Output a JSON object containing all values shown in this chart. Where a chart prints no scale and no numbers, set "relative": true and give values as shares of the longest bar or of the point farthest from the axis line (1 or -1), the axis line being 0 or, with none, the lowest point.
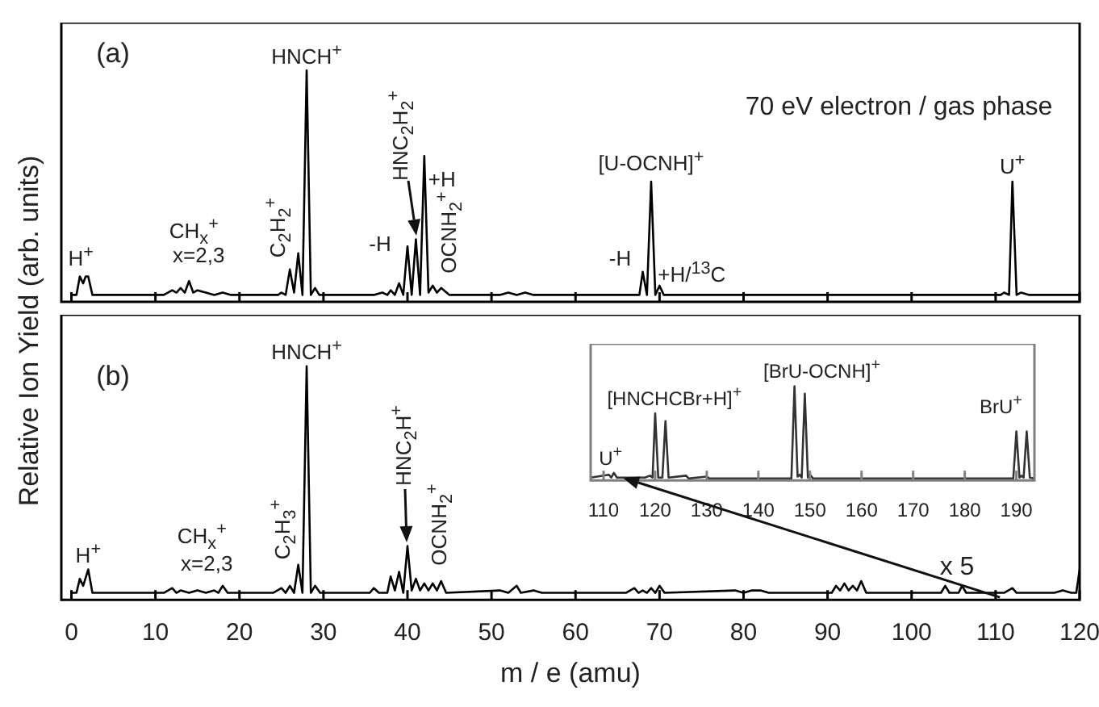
{
  "chart_data": [
    {
      "type": "line",
      "title": "(a)",
      "ylabel": "Relative Ion Yield (arb. units)",
      "relative": true,
      "color": "#000000",
      "xlim": [
        -1.2,
        120
      ],
      "xticks": [
        0,
        10,
        20,
        30,
        40,
        50,
        60,
        70,
        80,
        90,
        100,
        110,
        120
      ],
      "tick_labels": false,
      "x": [
        0,
        0.6,
        1,
        1.4,
        1.7,
        2,
        2.5,
        11,
        12,
        12.5,
        13,
        13.5,
        14,
        14.5,
        15,
        16,
        17,
        18,
        19,
        24,
        24.6,
        25,
        25.5,
        26,
        26.5,
        27,
        27.5,
        28,
        28.5,
        29,
        29.5,
        36,
        37,
        37.6,
        38,
        38.5,
        39,
        39.5,
        40,
        40.5,
        41,
        41.5,
        42,
        42.5,
        43,
        43.5,
        44,
        45,
        51,
        52,
        53,
        54,
        55,
        66,
        67.6,
        68,
        68.5,
        69,
        69.5,
        70,
        70.5,
        72,
        110.6,
        111,
        111.6,
        112,
        112.5,
        113,
        114,
        120
      ],
      "values": [
        0.03,
        0.03,
        0.11,
        0.08,
        0.11,
        0.11,
        0.03,
        0.03,
        0.05,
        0.04,
        0.06,
        0.04,
        0.09,
        0.04,
        0.05,
        0.04,
        0.03,
        0.04,
        0.03,
        0.03,
        0.03,
        0.04,
        0.03,
        0.14,
        0.04,
        0.21,
        0.03,
        1,
        0.03,
        0.06,
        0.03,
        0.03,
        0.04,
        0.03,
        0.05,
        0.03,
        0.08,
        0.03,
        0.24,
        0.03,
        0.27,
        0.03,
        0.63,
        0.04,
        0.07,
        0.04,
        0.06,
        0.03,
        0.03,
        0.04,
        0.03,
        0.04,
        0.03,
        0.03,
        0.03,
        0.13,
        0.03,
        0.52,
        0.03,
        0.07,
        0.03,
        0.03,
        0.03,
        0.04,
        0.03,
        0.52,
        0.03,
        0.04,
        0.03,
        0.03
      ],
      "annotations": [
        {
          "text": "H$^{+}$",
          "x": 1.5,
          "y": 0.11
        },
        {
          "text": "CH$_{x}$$^{+}$",
          "x": 14,
          "y": 0.09
        },
        {
          "text": "x=2,3",
          "x": 14,
          "y": 0.09
        },
        {
          "text": "C$_{2}$H$_{2}$$^{+}$",
          "x": 26,
          "y": 0.14
        },
        {
          "text": "HNCH$^{+}$",
          "x": 28,
          "y": 1
        },
        {
          "text": "HNC$_{2}$H$_{2}$$^{+}$",
          "x": 41,
          "y": 0.27
        },
        {
          "text": "-H",
          "x": 40,
          "y": 0.24
        },
        {
          "text": "+H",
          "x": 42,
          "y": 0.63
        },
        {
          "text": "OCNH$_{2}$$^{+}$",
          "x": 44,
          "y": 0.06
        },
        {
          "text": "[U-OCNH]$^{+}$",
          "x": 69,
          "y": 0.52
        },
        {
          "text": "-H",
          "x": 68,
          "y": 0.13
        },
        {
          "text": "+H/$^{13}$C",
          "x": 70,
          "y": 0.07
        },
        {
          "text": "U$^{+}$",
          "x": 112,
          "y": 0.52
        },
        "70 eV electron / gas phase"
      ]
    },
    {
      "type": "line",
      "title": "(b)",
      "xlabel": "m / e (amu)",
      "relative": true,
      "color": "#000000",
      "xlim": [
        -1.2,
        120
      ],
      "xticks": [
        0,
        10,
        20,
        30,
        40,
        50,
        60,
        70,
        80,
        90,
        100,
        110,
        120
      ],
      "tick_labels": "x",
      "x": [
        0,
        0.6,
        1,
        1.4,
        2,
        2.5,
        11,
        12,
        12.5,
        13,
        14,
        15,
        16,
        17,
        17.5,
        18,
        18.6,
        24,
        25,
        25.5,
        26,
        26.5,
        27,
        27.5,
        28,
        28.5,
        29,
        29.6,
        35.5,
        36,
        36.6,
        37.6,
        38,
        38.5,
        39,
        39.5,
        40,
        40.5,
        41,
        41.5,
        42,
        42.5,
        43,
        43.5,
        44,
        44.6,
        51,
        52,
        53,
        53.5,
        55,
        56,
        66,
        67,
        67.5,
        68,
        68.5,
        69,
        69.5,
        70,
        70.6,
        79,
        80,
        81,
        82,
        83,
        90.5,
        91,
        91.5,
        92,
        92.5,
        93,
        93.5,
        94,
        94.6,
        103.5,
        104,
        104.5,
        105.6,
        106,
        106.5,
        111,
        112,
        112.5,
        117,
        118,
        119,
        119.6,
        120
      ],
      "values": [
        0.03,
        0.03,
        0.09,
        0.06,
        0.13,
        0.03,
        0.03,
        0.05,
        0.03,
        0.04,
        0.03,
        0.04,
        0.03,
        0.04,
        0.03,
        0.06,
        0.03,
        0.03,
        0.05,
        0.03,
        0.06,
        0.03,
        0.15,
        0.03,
        1,
        0.03,
        0.06,
        0.03,
        0.03,
        0.05,
        0.03,
        0.03,
        0.1,
        0.04,
        0.12,
        0.03,
        0.23,
        0.04,
        0.09,
        0.04,
        0.07,
        0.04,
        0.07,
        0.04,
        0.08,
        0.03,
        0.04,
        0.03,
        0.06,
        0.03,
        0.04,
        0.03,
        0.03,
        0.05,
        0.03,
        0.04,
        0.03,
        0.05,
        0.03,
        0.06,
        0.03,
        0.04,
        0.03,
        0.04,
        0.04,
        0.03,
        0.03,
        0.06,
        0.04,
        0.07,
        0.04,
        0.06,
        0.04,
        0.08,
        0.03,
        0.03,
        0.06,
        0.03,
        0.03,
        0.06,
        0.03,
        0.03,
        0.05,
        0.03,
        0.03,
        0.04,
        0.03,
        0.03,
        0.13
      ],
      "annotations": [
        {
          "text": "H$^{+}$",
          "x": 2,
          "y": 0.13
        },
        {
          "text": "CH$_{x}$$^{+}$",
          "x": 14,
          "y": 0.05
        },
        {
          "text": "x=2,3",
          "x": 14,
          "y": 0.05
        },
        {
          "text": "C$_{2}$H$_{3}$$^{+}$",
          "x": 27,
          "y": 0.15
        },
        {
          "text": "HNCH$^{+}$",
          "x": 28,
          "y": 1
        },
        {
          "text": "HNC$_{2}$H$^{+}$",
          "x": 40,
          "y": 0.23
        },
        {
          "text": "OCNH$_{2}$$^{+}$",
          "x": 44,
          "y": 0.08
        },
        "x 5"
      ]
    },
    {
      "type": "line",
      "relative": true,
      "color": "#333333",
      "xlim": [
        107.5,
        193.5
      ],
      "xticks": [
        110,
        120,
        130,
        140,
        150,
        160,
        170,
        180,
        190
      ],
      "tick_labels": "x",
      "x": [
        107.5,
        111,
        111.5,
        112,
        112.6,
        118,
        119,
        119.5,
        120,
        120.6,
        121.4,
        122,
        122.6,
        126,
        126.5,
        130,
        130.5,
        146.4,
        147,
        147.6,
        148,
        148.4,
        149,
        149.6,
        150,
        150.6,
        189.4,
        190,
        190.6,
        191,
        191.4,
        192,
        192.6,
        193.5
      ],
      "values": [
        0.03,
        0.06,
        0.03,
        0.08,
        0.03,
        0.03,
        0.05,
        0.03,
        0.71,
        0.03,
        0.03,
        0.63,
        0.03,
        0.05,
        0.02,
        0.04,
        0.02,
        0.02,
        1,
        0.04,
        0.06,
        0.03,
        0.92,
        0.03,
        0.06,
        0.02,
        0.02,
        0.52,
        0.03,
        0.05,
        0.03,
        0.52,
        0.03,
        0.02
      ],
      "annotations": [
        {
          "text": "U$^{+}$",
          "x": 112,
          "y": 0.08
        },
        {
          "text": "[HNCHCBr+H]$^{+}$",
          "x": 120,
          "y": 0.71
        },
        {
          "text": "[BrU-OCNH]$^{+}$",
          "x": 147,
          "y": 1
        },
        {
          "text": "BrU$^{+}$",
          "x": 192,
          "y": 0.52
        }
      ]
    }
  ]
}
